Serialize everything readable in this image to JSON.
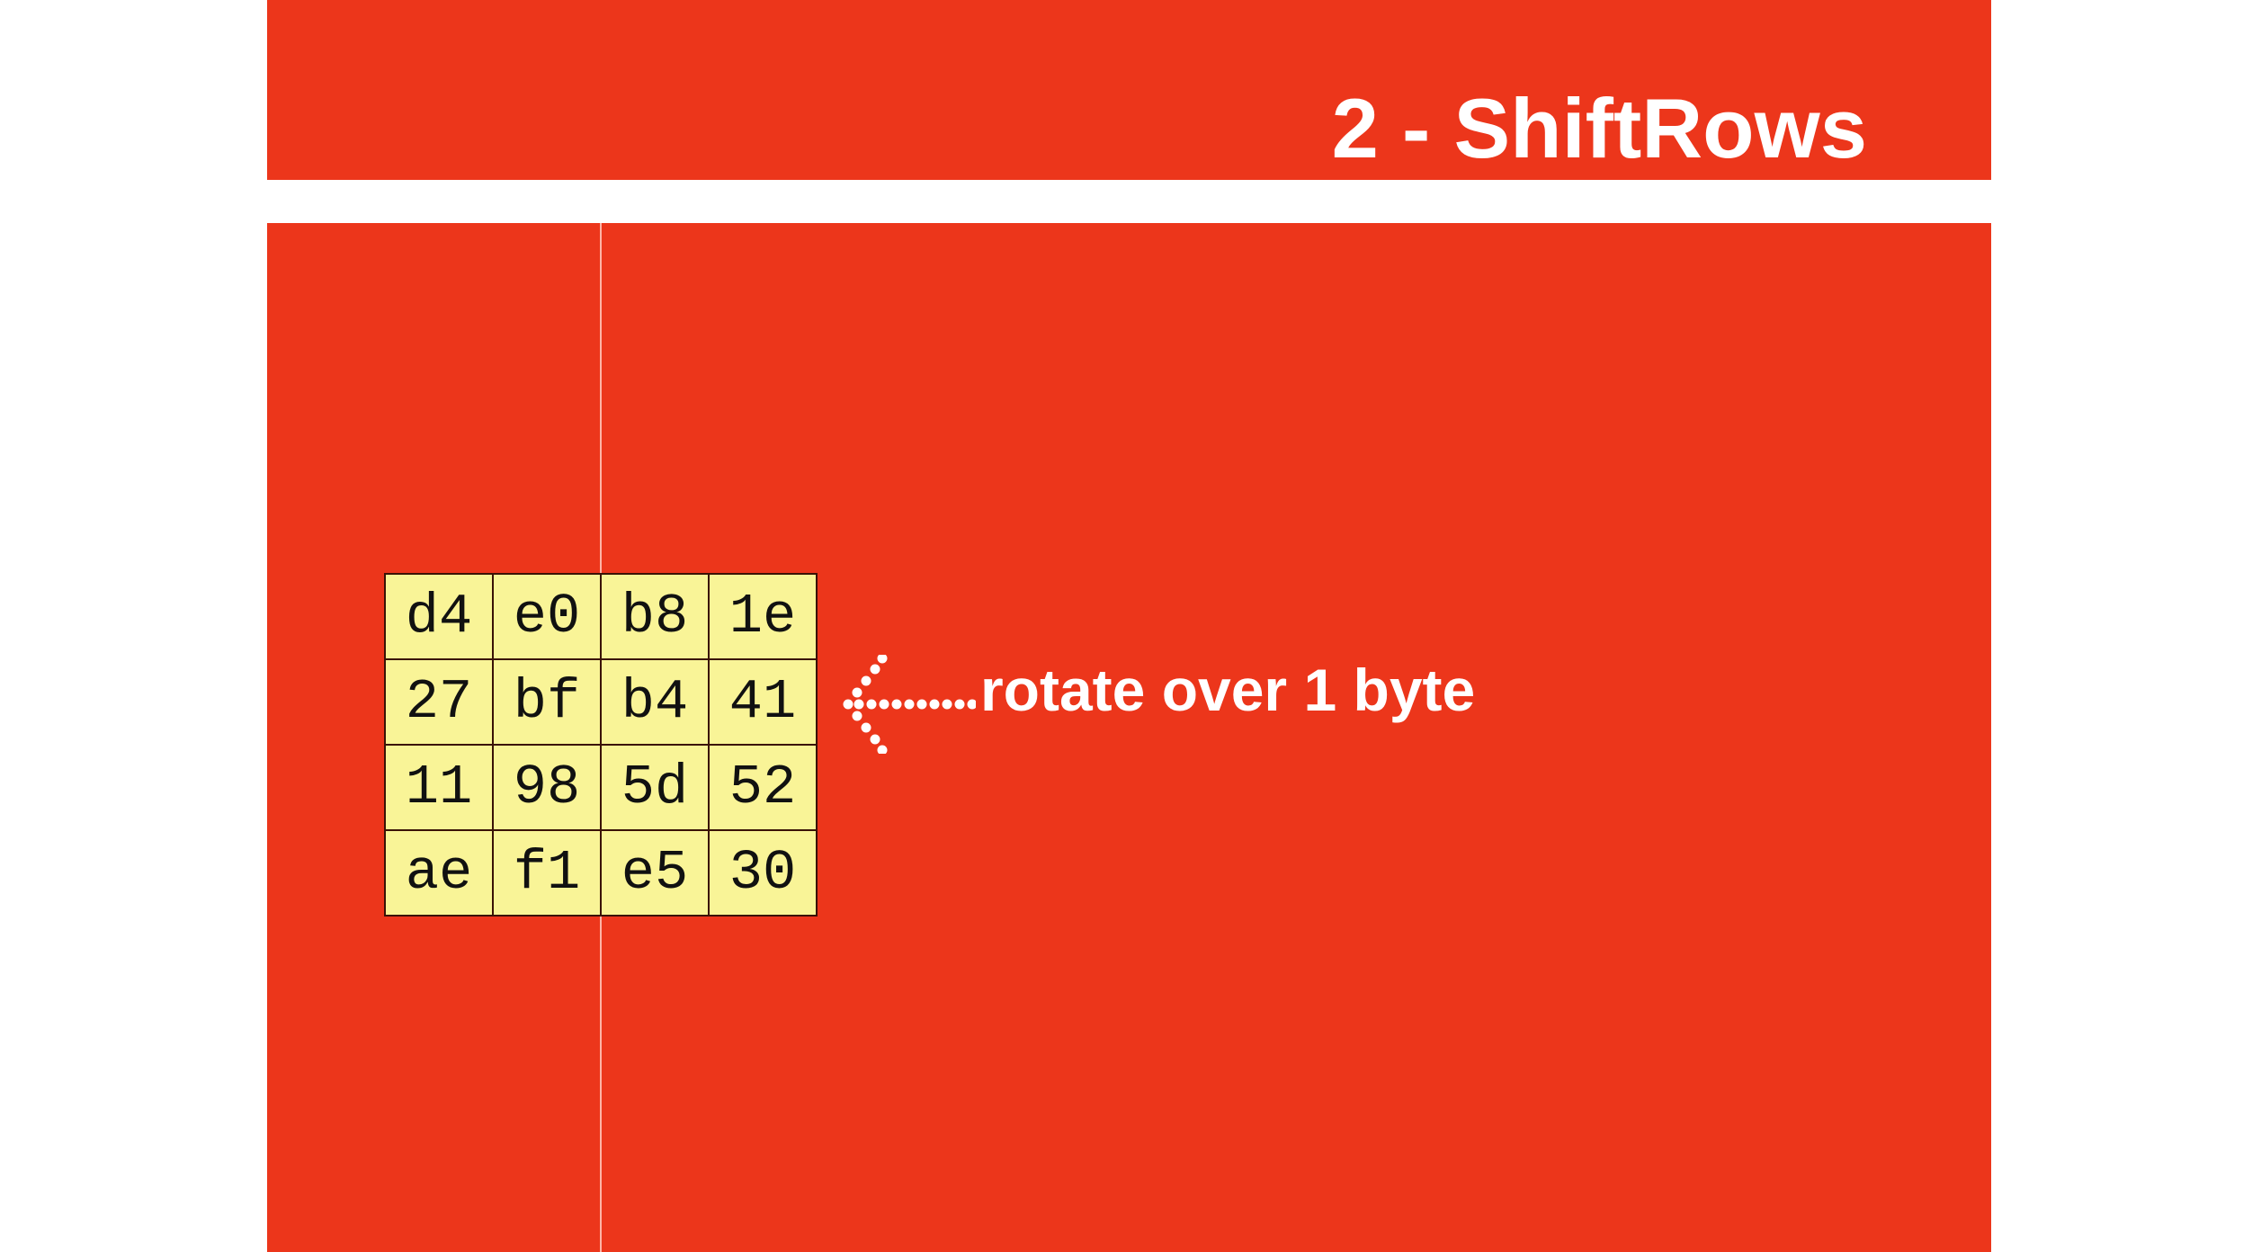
{
  "slide": {
    "title": "2 - ShiftRows",
    "annotation": "rotate over 1 byte",
    "annotation_icon": "dotted-left-arrow-icon"
  },
  "colors": {
    "background": "#ec361b",
    "cell_fill": "#f9f497",
    "text_on_red": "#ffffff"
  },
  "state_matrix": {
    "rows": [
      [
        "d4",
        "e0",
        "b8",
        "1e"
      ],
      [
        "27",
        "bf",
        "b4",
        "41"
      ],
      [
        "11",
        "98",
        "5d",
        "52"
      ],
      [
        "ae",
        "f1",
        "e5",
        "30"
      ]
    ]
  }
}
